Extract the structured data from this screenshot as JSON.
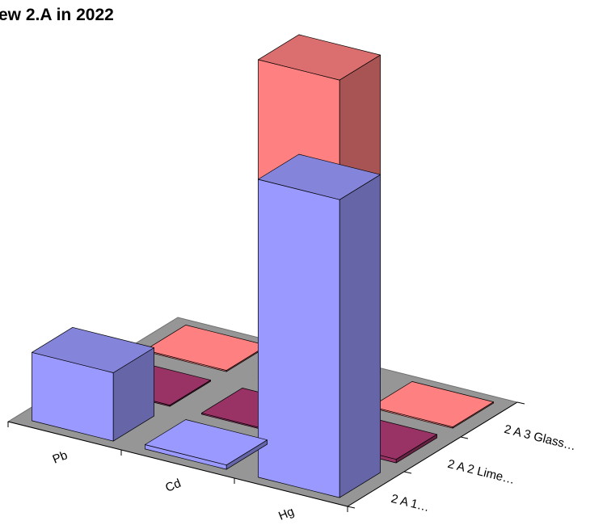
{
  "chart_data": {
    "type": "bar",
    "title": "ew 2.A in 2022",
    "categories": [
      "Pb",
      "Cd",
      "Hg"
    ],
    "series": [
      {
        "label": "2 A 1…",
        "color": "#9999ff",
        "values": [
          7.8,
          0.5,
          34.0
        ]
      },
      {
        "label": "2 A 2 Lime…",
        "color": "#993366",
        "values": [
          0.0,
          0.0,
          0.4
        ]
      },
      {
        "label": "2 A 3 Glass…",
        "color": "#ff8080",
        "values": [
          0.0,
          36.5,
          0.0
        ]
      }
    ],
    "floor_color": "#969696",
    "grid": false,
    "legend": "none"
  }
}
